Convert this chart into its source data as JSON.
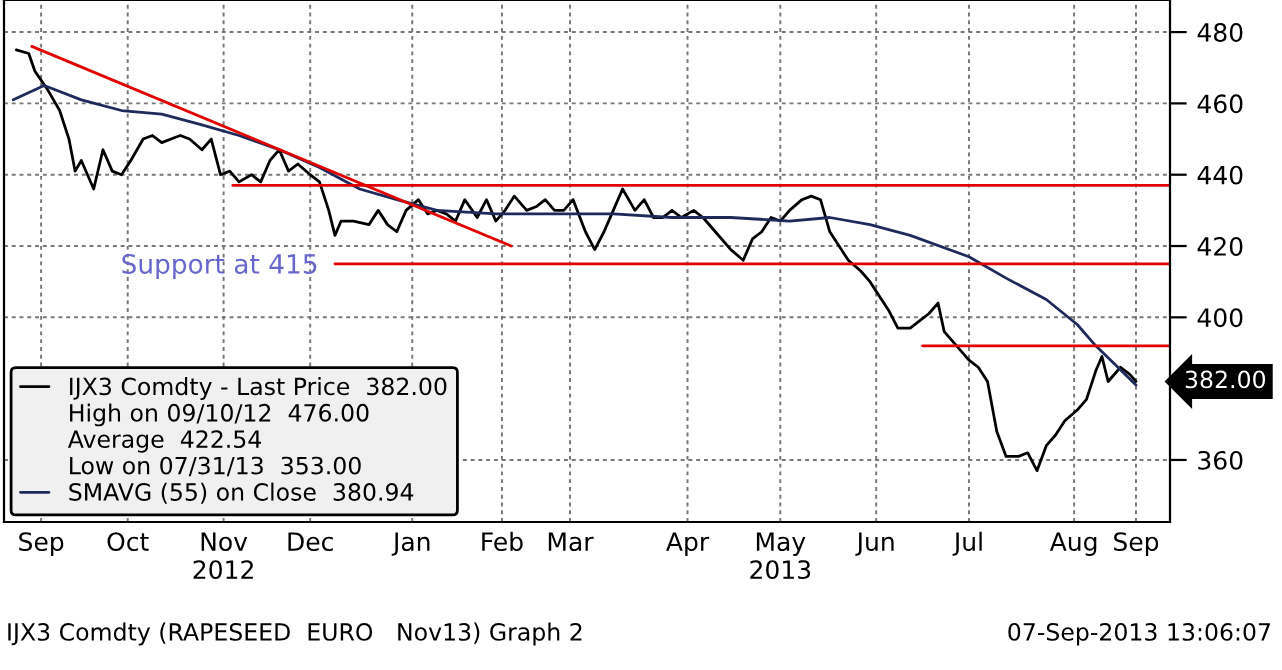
{
  "chart_data": {
    "type": "line",
    "ylim": [
      342.6,
      489
    ],
    "yticks": [
      360,
      400,
      420,
      440,
      460,
      480
    ],
    "xlim": [
      "2012-09-06",
      "2013-09-18"
    ],
    "xticks": [
      {
        "value": "2012-09-18",
        "label": "Sep"
      },
      {
        "value": "2012-10-16",
        "label": "Oct"
      },
      {
        "value": "2012-11-16",
        "label": "Nov\n2012"
      },
      {
        "value": "2012-12-14",
        "label": "Dec"
      },
      {
        "value": "2013-01-16",
        "label": "Jan"
      },
      {
        "value": "2013-02-14",
        "label": "Feb"
      },
      {
        "value": "2013-03-08",
        "label": "Mar"
      },
      {
        "value": "2013-04-15",
        "label": "Apr"
      },
      {
        "value": "2013-05-15",
        "label": "May\n2013"
      },
      {
        "value": "2013-06-15",
        "label": "Jun"
      },
      {
        "value": "2013-07-15",
        "label": "Jul"
      },
      {
        "value": "2013-08-18",
        "label": "Aug"
      },
      {
        "value": "2013-09-07",
        "label": "Sep"
      }
    ],
    "grid": true,
    "legend": "bottom left",
    "marker": "none",
    "line_style": "solid",
    "series": [
      {
        "name": "IJX3 Comdty - Last Price  382.00",
        "color": "#000000",
        "x": [
          "2012-09-10",
          "2012-09-14",
          "2012-09-16",
          "2012-09-20",
          "2012-09-24",
          "2012-09-27",
          "2012-09-29",
          "2012-10-01",
          "2012-10-05",
          "2012-10-08",
          "2012-10-11",
          "2012-10-14",
          "2012-10-17",
          "2012-10-21",
          "2012-10-24",
          "2012-10-27",
          "2012-10-30",
          "2012-11-02",
          "2012-11-05",
          "2012-11-09",
          "2012-11-12",
          "2012-11-15",
          "2012-11-18",
          "2012-11-21",
          "2012-11-25",
          "2012-11-28",
          "2012-12-01",
          "2012-12-04",
          "2012-12-07",
          "2012-12-10",
          "2012-12-14",
          "2012-12-17",
          "2012-12-20",
          "2012-12-22",
          "2012-12-24",
          "2012-12-28",
          "2013-01-02",
          "2013-01-05",
          "2013-01-08",
          "2013-01-11",
          "2013-01-14",
          "2013-01-18",
          "2013-01-21",
          "2013-01-24",
          "2013-01-27",
          "2013-01-30",
          "2013-02-02",
          "2013-02-06",
          "2013-02-09",
          "2013-02-12",
          "2013-02-15",
          "2013-02-18",
          "2013-02-22",
          "2013-02-25",
          "2013-02-28",
          "2013-03-03",
          "2013-03-06",
          "2013-03-09",
          "2013-03-13",
          "2013-03-16",
          "2013-03-19",
          "2013-03-22",
          "2013-03-25",
          "2013-03-29",
          "2013-04-01",
          "2013-04-04",
          "2013-04-07",
          "2013-04-10",
          "2013-04-13",
          "2013-04-17",
          "2013-04-20",
          "2013-04-24",
          "2013-04-29",
          "2013-05-03",
          "2013-05-06",
          "2013-05-09",
          "2013-05-12",
          "2013-05-15",
          "2013-05-18",
          "2013-05-22",
          "2013-05-25",
          "2013-05-28",
          "2013-05-31",
          "2013-06-03",
          "2013-06-06",
          "2013-06-10",
          "2013-06-13",
          "2013-06-16",
          "2013-06-19",
          "2013-06-22",
          "2013-06-26",
          "2013-06-29",
          "2013-07-02",
          "2013-07-05",
          "2013-07-07",
          "2013-07-15",
          "2013-07-18",
          "2013-07-21",
          "2013-07-24",
          "2013-07-27",
          "2013-07-31",
          "2013-08-03",
          "2013-08-06",
          "2013-08-09",
          "2013-08-12",
          "2013-08-15",
          "2013-08-19",
          "2013-08-22",
          "2013-08-25",
          "2013-08-27",
          "2013-08-29",
          "2013-09-02",
          "2013-09-05",
          "2013-09-07"
        ],
        "values": [
          475,
          474,
          469,
          464,
          458,
          450,
          441,
          444,
          436,
          447,
          441,
          440,
          444,
          450,
          451,
          449,
          450,
          451,
          450,
          447,
          450,
          440,
          441,
          438,
          440,
          438,
          444,
          447,
          441,
          443,
          440,
          438,
          430,
          423,
          427,
          427,
          426,
          430,
          426,
          424,
          430,
          433,
          429,
          430,
          429,
          427,
          433,
          428,
          433,
          427,
          430,
          434,
          430,
          431,
          433,
          430,
          430,
          433,
          424,
          419,
          424,
          430,
          436,
          430,
          433,
          428,
          428,
          430,
          428,
          430,
          428,
          424,
          419,
          416,
          422,
          424,
          428,
          427,
          430,
          433,
          434,
          433,
          424,
          420,
          416,
          413,
          410,
          406,
          402,
          397,
          397,
          399,
          401,
          404,
          396,
          388,
          386,
          382,
          368,
          361,
          361,
          362,
          357,
          364,
          367,
          371,
          374,
          377,
          385,
          389,
          382,
          386,
          384,
          382
        ]
      },
      {
        "name": "SMAVG (55) on Close  380.94",
        "color": "#1f2a5c",
        "x": [
          "2012-09-09",
          "2012-09-19",
          "2012-10-01",
          "2012-10-14",
          "2012-10-27",
          "2012-11-09",
          "2012-11-21",
          "2012-12-04",
          "2012-12-17",
          "2012-12-30",
          "2013-01-11",
          "2013-01-24",
          "2013-02-12",
          "2013-03-03",
          "2013-03-22",
          "2013-04-10",
          "2013-04-29",
          "2013-05-18",
          "2013-05-31",
          "2013-06-13",
          "2013-06-26",
          "2013-07-15",
          "2013-07-27",
          "2013-08-09",
          "2013-08-19",
          "2013-08-25",
          "2013-08-31",
          "2013-09-07"
        ],
        "values": [
          461,
          465,
          461,
          458,
          457,
          454,
          451,
          447,
          442,
          436,
          433,
          430,
          429,
          429,
          429,
          428,
          428,
          427,
          428,
          426,
          423,
          417,
          411,
          405,
          398,
          392,
          387,
          381
        ]
      },
      {
        "color": "#e00000",
        "x": [
          "2012-09-15",
          "2013-02-17"
        ],
        "values": [
          476,
          420
        ]
      },
      {
        "color": "#e00000",
        "x": [
          "2012-11-19",
          "2013-09-18"
        ],
        "values": [
          437,
          437
        ]
      },
      {
        "color": "#e00000",
        "x": [
          "2012-12-22",
          "2013-09-18"
        ],
        "values": [
          415,
          415
        ]
      },
      {
        "color": "#e00000",
        "x": [
          "2013-06-30",
          "2013-09-18"
        ],
        "values": [
          392,
          392
        ]
      }
    ],
    "annotations": [
      "High on 09/10/12  476.00",
      "Average  422.54",
      "Low on 07/31/13  353.00",
      "Support at 415",
      {
        "text": "382.00",
        "x": "2013-09-07",
        "y": 382
      },
      "IJX3 Comdty (RAPESEED  EURO   Nov13) Graph 2",
      "07-Sep-2013 13:06:07"
    ]
  }
}
